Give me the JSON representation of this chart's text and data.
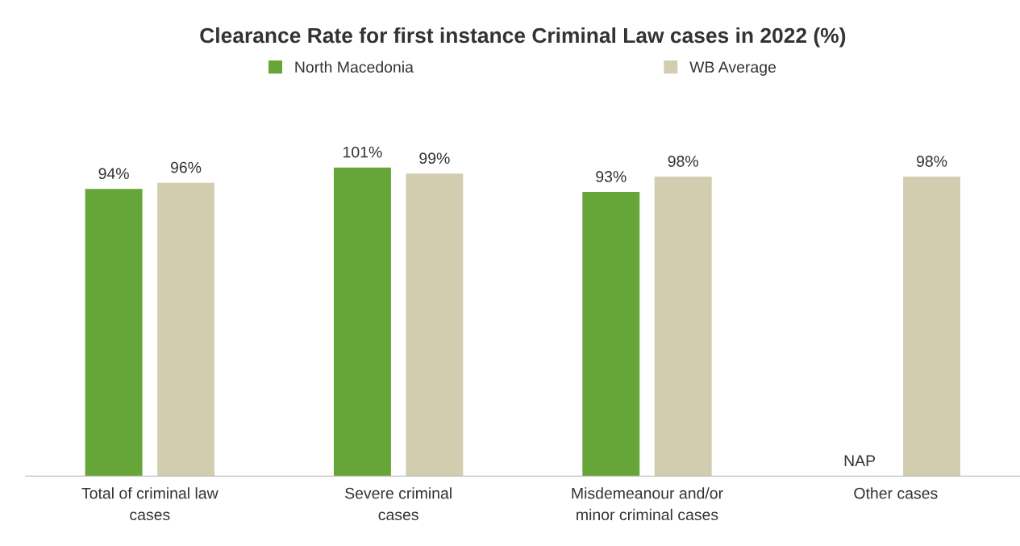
{
  "chart_data": {
    "type": "bar",
    "title": "Clearance Rate for first instance Criminal Law cases in 2022 (%)",
    "categories": [
      "Total of criminal law\ncases",
      "Severe criminal\ncases",
      "Misdemeanour and/or\nminor criminal cases",
      "Other cases"
    ],
    "series": [
      {
        "name": "North Macedonia",
        "color": "#66a538",
        "values": [
          94,
          101,
          93,
          null
        ],
        "value_labels": [
          "94%",
          "101%",
          "93%",
          "NAP"
        ]
      },
      {
        "name": "WB Average",
        "color": "#d3cdb0",
        "values": [
          96,
          99,
          98,
          98
        ],
        "value_labels": [
          "96%",
          "99%",
          "98%",
          "98%"
        ]
      }
    ],
    "legend": "top"
  }
}
